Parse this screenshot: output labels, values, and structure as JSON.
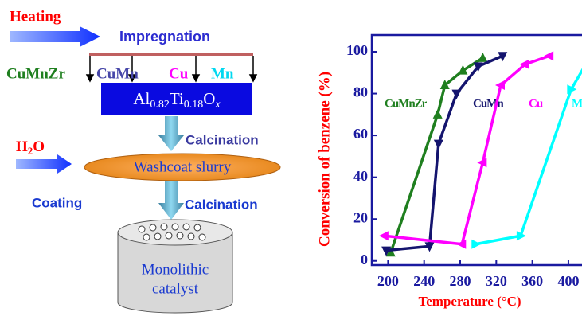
{
  "diagram": {
    "heating": "Heating",
    "impregnation": "Impregnation",
    "precursors": [
      "CuMnZr",
      "CuMn",
      "Cu",
      "Mn"
    ],
    "support": [
      "Al",
      "0.82",
      "Ti",
      "0.18",
      "O",
      "x"
    ],
    "water": [
      "H",
      "2",
      "O"
    ],
    "calcination_1": "Calcination",
    "washcoat": "Washcoat slurry",
    "coating": "Coating",
    "calcination_2": "Calcination",
    "catalyst": [
      "Monolithic",
      "catalyst"
    ]
  },
  "chart_data": {
    "type": "line",
    "y_label": "Conversion of benzene (%)",
    "x_label": "Temperature (°C)",
    "xlim": [
      182,
      423
    ],
    "ylim": [
      -2,
      108
    ],
    "xticks": [
      200,
      240,
      280,
      320,
      360,
      400
    ],
    "yticks": [
      0,
      20,
      40,
      60,
      80,
      100
    ],
    "series": [
      {
        "name": "CuMnZr",
        "color": "#1f7f1f",
        "marker": "triangle-up",
        "x": [
          203,
          255,
          263,
          283,
          305
        ],
        "values": [
          4,
          70,
          84,
          91,
          97
        ]
      },
      {
        "name": "CuMn",
        "color": "#14146e",
        "marker": "triangle-down",
        "x": [
          198,
          246,
          256,
          276,
          300,
          327
        ],
        "values": [
          5,
          7,
          56,
          80,
          93,
          98
        ]
      },
      {
        "name": "Cu",
        "color": "#ff00ff",
        "marker": "triangle-left",
        "x": [
          196,
          282,
          305,
          325,
          352,
          379
        ],
        "values": [
          12,
          8,
          47,
          84,
          94,
          98
        ]
      },
      {
        "name": "Mn",
        "color": "#00ffff",
        "marker": "triangle-right",
        "x": [
          297,
          347,
          403,
          422
        ],
        "values": [
          8,
          12,
          82,
          96
        ]
      }
    ]
  }
}
